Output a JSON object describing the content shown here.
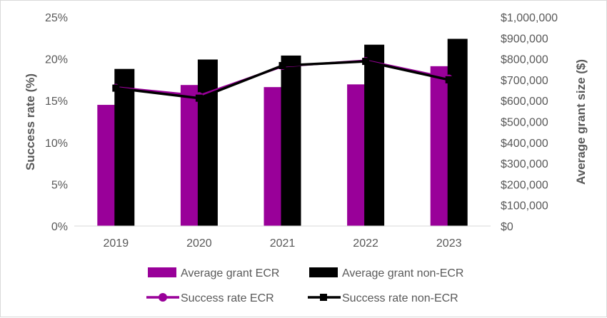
{
  "chart_data": {
    "type": "bar",
    "categories": [
      "2019",
      "2020",
      "2021",
      "2022",
      "2023"
    ],
    "series": [
      {
        "name": "Average grant ECR",
        "kind": "bar",
        "axis": "right",
        "color": "#990099",
        "values": [
          580000,
          675000,
          665000,
          678000,
          765000
        ]
      },
      {
        "name": "Average grant non-ECR",
        "kind": "bar",
        "axis": "right",
        "color": "#000000",
        "values": [
          752000,
          797000,
          816000,
          868000,
          896000
        ]
      },
      {
        "name": "Success rate ECR",
        "kind": "line",
        "marker": "circle",
        "axis": "left",
        "color": "#990099",
        "values": [
          16.6,
          15.6,
          19.1,
          19.8,
          17.7
        ]
      },
      {
        "name": "Success rate non-ECR",
        "kind": "line",
        "marker": "square",
        "axis": "left",
        "color": "#000000",
        "values": [
          16.5,
          15.3,
          19.2,
          19.7,
          17.5
        ]
      }
    ],
    "ylabel_left": "Success rate (%)",
    "ylabel_right": "Average grant size ($)",
    "ylim_left": [
      0,
      25
    ],
    "ylim_right": [
      0,
      1000000
    ],
    "yticks_left": [
      "0%",
      "5%",
      "10%",
      "15%",
      "20%",
      "25%"
    ],
    "yticks_right": [
      "$0",
      "$100,000",
      "$200,000",
      "$300,000",
      "$400,000",
      "$500,000",
      "$600,000",
      "$700,000",
      "$800,000",
      "$900,000",
      "$1,000,000"
    ],
    "grid": false,
    "legend_position": "bottom"
  }
}
